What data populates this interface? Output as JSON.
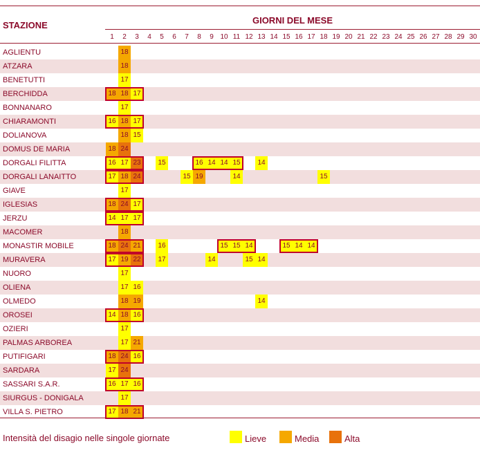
{
  "header": {
    "station_label": "STAZIONE",
    "days_label": "GIORNI DEL MESE"
  },
  "days": [
    "1",
    "2",
    "3",
    "4",
    "5",
    "6",
    "7",
    "8",
    "9",
    "10",
    "11",
    "12",
    "13",
    "14",
    "15",
    "16",
    "17",
    "18",
    "19",
    "20",
    "21",
    "22",
    "23",
    "24",
    "25",
    "26",
    "27",
    "28",
    "29",
    "30"
  ],
  "colors": {
    "lieve": "#ffff00",
    "media": "#f5a800",
    "alta": "#e8720c",
    "shade": "#f2dede",
    "text": "#8b0a2a",
    "box": "#c0002a"
  },
  "chart_data": {
    "type": "heatmap",
    "title": "",
    "xlabel": "GIORNI DEL MESE",
    "ylabel": "STAZIONE",
    "x": [
      1,
      2,
      3,
      4,
      5,
      6,
      7,
      8,
      9,
      10,
      11,
      12,
      13,
      14,
      15,
      16,
      17,
      18,
      19,
      20,
      21,
      22,
      23,
      24,
      25,
      26,
      27,
      28,
      29,
      30
    ],
    "levels": {
      "L": "Lieve",
      "M": "Media",
      "A": "Alta"
    },
    "stations": [
      {
        "name": "AGLIENTU",
        "cells": [
          [
            2,
            18,
            "M"
          ]
        ],
        "boxes": []
      },
      {
        "name": "ATZARA",
        "cells": [
          [
            2,
            18,
            "M"
          ]
        ],
        "boxes": []
      },
      {
        "name": "BENETUTTI",
        "cells": [
          [
            2,
            17,
            "L"
          ]
        ],
        "boxes": []
      },
      {
        "name": "BERCHIDDA",
        "cells": [
          [
            1,
            18,
            "M"
          ],
          [
            2,
            18,
            "M"
          ],
          [
            3,
            17,
            "L"
          ]
        ],
        "boxes": [
          [
            1,
            3
          ]
        ]
      },
      {
        "name": "BONNANARO",
        "cells": [
          [
            2,
            17,
            "L"
          ]
        ],
        "boxes": []
      },
      {
        "name": "CHIARAMONTI",
        "cells": [
          [
            1,
            16,
            "L"
          ],
          [
            2,
            18,
            "M"
          ],
          [
            3,
            17,
            "L"
          ]
        ],
        "boxes": [
          [
            1,
            3
          ]
        ]
      },
      {
        "name": "DOLIANOVA",
        "cells": [
          [
            2,
            18,
            "M"
          ],
          [
            3,
            15,
            "L"
          ]
        ],
        "boxes": []
      },
      {
        "name": "DOMUS DE MARIA",
        "cells": [
          [
            1,
            18,
            "M"
          ],
          [
            2,
            24,
            "A"
          ]
        ],
        "boxes": []
      },
      {
        "name": "DORGALI FILITTA",
        "cells": [
          [
            1,
            16,
            "L"
          ],
          [
            2,
            17,
            "L"
          ],
          [
            3,
            23,
            "A"
          ],
          [
            5,
            15,
            "L"
          ],
          [
            8,
            16,
            "L"
          ],
          [
            9,
            14,
            "L"
          ],
          [
            10,
            14,
            "L"
          ],
          [
            11,
            15,
            "L"
          ],
          [
            13,
            14,
            "L"
          ]
        ],
        "boxes": [
          [
            1,
            3
          ],
          [
            8,
            11
          ]
        ]
      },
      {
        "name": "DORGALI LANAITTO",
        "cells": [
          [
            1,
            17,
            "L"
          ],
          [
            2,
            18,
            "M"
          ],
          [
            3,
            24,
            "A"
          ],
          [
            7,
            15,
            "L"
          ],
          [
            8,
            19,
            "M"
          ],
          [
            11,
            14,
            "L"
          ],
          [
            18,
            15,
            "L"
          ]
        ],
        "boxes": [
          [
            1,
            3
          ]
        ]
      },
      {
        "name": "GIAVE",
        "cells": [
          [
            2,
            17,
            "L"
          ]
        ],
        "boxes": []
      },
      {
        "name": "IGLESIAS",
        "cells": [
          [
            1,
            18,
            "M"
          ],
          [
            2,
            24,
            "A"
          ],
          [
            3,
            17,
            "L"
          ]
        ],
        "boxes": [
          [
            1,
            3
          ]
        ]
      },
      {
        "name": "JERZU",
        "cells": [
          [
            1,
            14,
            "L"
          ],
          [
            2,
            17,
            "L"
          ],
          [
            3,
            17,
            "L"
          ]
        ],
        "boxes": [
          [
            1,
            3
          ]
        ]
      },
      {
        "name": "MACOMER",
        "cells": [
          [
            2,
            18,
            "M"
          ]
        ],
        "boxes": []
      },
      {
        "name": "MONASTIR MOBILE",
        "cells": [
          [
            1,
            18,
            "M"
          ],
          [
            2,
            24,
            "A"
          ],
          [
            3,
            21,
            "M"
          ],
          [
            5,
            16,
            "L"
          ],
          [
            10,
            15,
            "L"
          ],
          [
            11,
            15,
            "L"
          ],
          [
            12,
            14,
            "L"
          ],
          [
            15,
            15,
            "L"
          ],
          [
            16,
            14,
            "L"
          ],
          [
            17,
            14,
            "L"
          ]
        ],
        "boxes": [
          [
            1,
            3
          ],
          [
            10,
            12
          ],
          [
            15,
            17
          ]
        ]
      },
      {
        "name": "MURAVERA",
        "cells": [
          [
            1,
            17,
            "L"
          ],
          [
            2,
            19,
            "M"
          ],
          [
            3,
            22,
            "A"
          ],
          [
            5,
            17,
            "L"
          ],
          [
            9,
            14,
            "L"
          ],
          [
            12,
            15,
            "L"
          ],
          [
            13,
            14,
            "L"
          ]
        ],
        "boxes": [
          [
            1,
            3
          ]
        ]
      },
      {
        "name": "NUORO",
        "cells": [
          [
            2,
            17,
            "L"
          ]
        ],
        "boxes": []
      },
      {
        "name": "OLIENA",
        "cells": [
          [
            2,
            17,
            "L"
          ],
          [
            3,
            16,
            "L"
          ]
        ],
        "boxes": []
      },
      {
        "name": "OLMEDO",
        "cells": [
          [
            2,
            18,
            "M"
          ],
          [
            3,
            19,
            "M"
          ],
          [
            13,
            14,
            "L"
          ]
        ],
        "boxes": []
      },
      {
        "name": "OROSEI",
        "cells": [
          [
            1,
            14,
            "L"
          ],
          [
            2,
            18,
            "M"
          ],
          [
            3,
            16,
            "L"
          ]
        ],
        "boxes": [
          [
            1,
            3
          ]
        ]
      },
      {
        "name": "OZIERI",
        "cells": [
          [
            2,
            17,
            "L"
          ]
        ],
        "boxes": []
      },
      {
        "name": "PALMAS ARBOREA",
        "cells": [
          [
            2,
            17,
            "L"
          ],
          [
            3,
            21,
            "M"
          ]
        ],
        "boxes": []
      },
      {
        "name": "PUTIFIGARI",
        "cells": [
          [
            1,
            18,
            "M"
          ],
          [
            2,
            24,
            "A"
          ],
          [
            3,
            16,
            "L"
          ]
        ],
        "boxes": [
          [
            1,
            3
          ]
        ]
      },
      {
        "name": "SARDARA",
        "cells": [
          [
            1,
            17,
            "L"
          ],
          [
            2,
            24,
            "A"
          ]
        ],
        "boxes": []
      },
      {
        "name": "SASSARI S.A.R.",
        "cells": [
          [
            1,
            16,
            "L"
          ],
          [
            2,
            17,
            "L"
          ],
          [
            3,
            16,
            "L"
          ]
        ],
        "boxes": [
          [
            1,
            3
          ]
        ]
      },
      {
        "name": "SIURGUS - DONIGALA",
        "cells": [
          [
            2,
            17,
            "L"
          ]
        ],
        "boxes": []
      },
      {
        "name": "VILLA S. PIETRO",
        "cells": [
          [
            1,
            17,
            "L"
          ],
          [
            2,
            18,
            "M"
          ],
          [
            3,
            21,
            "M"
          ]
        ],
        "boxes": [
          [
            1,
            3
          ]
        ]
      }
    ]
  },
  "legend": {
    "caption": "Intensità del disagio nelle singole giornate",
    "items": [
      {
        "label": "Lieve",
        "color": "#ffff00"
      },
      {
        "label": "Media",
        "color": "#f5a800"
      },
      {
        "label": "Alta",
        "color": "#e8720c"
      }
    ]
  }
}
